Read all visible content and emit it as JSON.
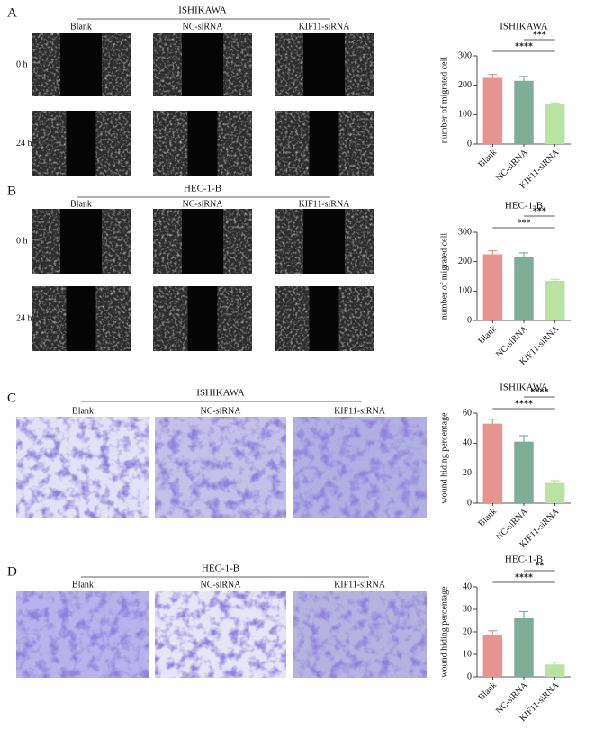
{
  "panels": [
    {
      "letter": "A",
      "title": "ISHIKAWA",
      "columns": [
        "Blank",
        "NC-siRNA",
        "KIF11-siRNA"
      ],
      "rows": [
        "0 h",
        "24 h"
      ]
    },
    {
      "letter": "B",
      "title": "HEC-1-B",
      "columns": [
        "Blank",
        "NC-siRNA",
        "KIF11-siRNA"
      ],
      "rows": [
        "0 h",
        "24 h"
      ]
    },
    {
      "letter": "C",
      "title": "ISHIKAWA",
      "columns": [
        "Blank",
        "NC-siRNA",
        "KIF11-siRNA"
      ]
    },
    {
      "letter": "D",
      "title": "HEC-1-B",
      "columns": [
        "Blank",
        "NC-siRNA",
        "KIF11-siRNA"
      ]
    }
  ],
  "chart_data": [
    {
      "type": "bar",
      "title": "ISHIKAWA",
      "y_label": "number of migrated cell",
      "categories": [
        "Blank",
        "NC-siRNA",
        "KIF11-siRNA"
      ],
      "values": [
        225,
        215,
        135
      ],
      "errors": [
        12,
        15,
        5
      ],
      "colors": [
        "#e8948e",
        "#7fae98",
        "#b9e3a2"
      ],
      "ylim": [
        0,
        300
      ],
      "yticks": [
        0,
        100,
        200,
        300
      ],
      "significance": [
        {
          "label": "****",
          "groups": [
            "Blank",
            "KIF11-siRNA"
          ]
        },
        {
          "label": "***",
          "groups": [
            "NC-siRNA",
            "KIF11-siRNA"
          ]
        }
      ]
    },
    {
      "type": "bar",
      "title": "HEC-1-B",
      "y_label": "number of migrated cell",
      "categories": [
        "Blank",
        "NC-siRNA",
        "KIF11-siRNA"
      ],
      "values": [
        225,
        215,
        135
      ],
      "errors": [
        12,
        15,
        5
      ],
      "colors": [
        "#e8948e",
        "#7fae98",
        "#b9e3a2"
      ],
      "ylim": [
        0,
        300
      ],
      "yticks": [
        0,
        100,
        200,
        300
      ],
      "significance": [
        {
          "label": "***",
          "groups": [
            "Blank",
            "KIF11-siRNA"
          ]
        },
        {
          "label": "***",
          "groups": [
            "NC-siRNA",
            "KIF11-siRNA"
          ]
        }
      ]
    },
    {
      "type": "bar",
      "title": "ISHIKAWA",
      "y_label": "wound hiding percentage",
      "categories": [
        "Blank",
        "NC-siRNA",
        "KIF11-siRNA"
      ],
      "values": [
        53,
        41,
        13.5
      ],
      "errors": [
        3,
        4,
        1.5
      ],
      "colors": [
        "#e8948e",
        "#7fae98",
        "#b9e3a2"
      ],
      "ylim": [
        0,
        60
      ],
      "yticks": [
        0,
        20,
        40,
        60
      ],
      "significance": [
        {
          "label": "****",
          "groups": [
            "Blank",
            "KIF11-siRNA"
          ]
        },
        {
          "label": "****",
          "groups": [
            "NC-siRNA",
            "KIF11-siRNA"
          ]
        }
      ]
    },
    {
      "type": "bar",
      "title": "HEC-1-B",
      "y_label": "wound hiding percentage",
      "categories": [
        "Blank",
        "NC-siRNA",
        "KIF11-siRNA"
      ],
      "values": [
        18.5,
        26,
        5.5
      ],
      "errors": [
        2,
        3,
        1
      ],
      "colors": [
        "#e8948e",
        "#7fae98",
        "#b9e3a2"
      ],
      "ylim": [
        0,
        40
      ],
      "yticks": [
        0,
        10,
        20,
        30,
        40
      ],
      "significance": [
        {
          "label": "****",
          "groups": [
            "Blank",
            "KIF11-siRNA"
          ]
        },
        {
          "label": "**",
          "groups": [
            "NC-siRNA",
            "KIF11-siRNA"
          ]
        }
      ]
    }
  ]
}
